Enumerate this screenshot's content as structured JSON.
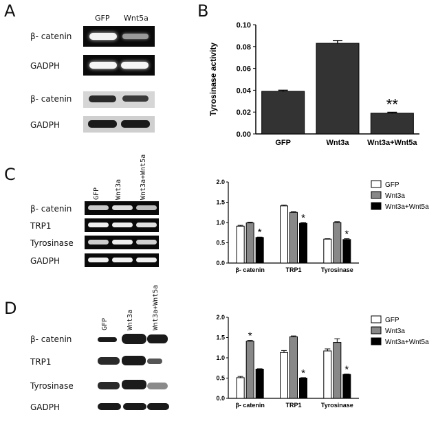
{
  "panels": {
    "A": {
      "letter": "A",
      "col_labels": [
        "GFP",
        "Wnt5a"
      ],
      "row_labels": [
        "β- catenin",
        "GADPH",
        "β- catenin",
        "GADPH"
      ]
    },
    "B": {
      "letter": "B"
    },
    "C": {
      "letter": "C",
      "col_labels": [
        "GFP",
        "Wnt3a",
        "Wnt3a+Wnt5a"
      ],
      "row_labels": [
        "β- catenin",
        "TRP1",
        "Tyrosinase",
        "GADPH"
      ]
    },
    "D": {
      "letter": "D",
      "col_labels": [
        "GFP",
        "Wnt3a",
        "Wnt3a+Wnt5a"
      ],
      "row_labels": [
        "β- catenin",
        "TRP1",
        "Tyrosinase",
        "GADPH"
      ]
    }
  },
  "chart_data": [
    {
      "id": "B",
      "type": "bar",
      "ylabel": "Tyrosinase activity",
      "categories": [
        "GFP",
        "Wnt3a",
        "Wnt3a+Wnt5a"
      ],
      "values": [
        0.039,
        0.083,
        0.019
      ],
      "errors": [
        0.001,
        0.0025,
        0.0008
      ],
      "annotations": [
        "",
        "",
        "**"
      ],
      "ylim": [
        0,
        0.1
      ],
      "yticks": [
        "0.00",
        "0.02",
        "0.04",
        "0.06",
        "0.08",
        "0.10"
      ],
      "bar_color": "#333333"
    },
    {
      "id": "C",
      "type": "bar",
      "categories": [
        "β- catenin",
        "TRP1",
        "Tyrosinase"
      ],
      "series": [
        {
          "name": "GFP",
          "values": [
            0.91,
            1.41,
            0.59
          ],
          "errors": [
            0.02,
            0.02,
            0.01
          ],
          "color": "#ffffff"
        },
        {
          "name": "Wnt3a",
          "values": [
            0.99,
            1.25,
            1.0
          ],
          "errors": [
            0.02,
            0.02,
            0.02
          ],
          "color": "#888888"
        },
        {
          "name": "Wnt3a+Wnt5a",
          "values": [
            0.63,
            0.98,
            0.58
          ],
          "errors": [
            0.01,
            0.02,
            0.02
          ],
          "color": "#000000"
        }
      ],
      "annotations": [
        [
          "",
          "",
          "*"
        ],
        [
          "",
          "",
          "*"
        ],
        [
          "",
          "",
          "*"
        ]
      ],
      "ylim": [
        0,
        2.0
      ],
      "yticks": [
        "0.0",
        "0.5",
        "1.0",
        "1.5",
        "2.0"
      ]
    },
    {
      "id": "D",
      "type": "bar",
      "categories": [
        "β- catenin",
        "TRP1",
        "Tyrosinase"
      ],
      "series": [
        {
          "name": "GFP",
          "values": [
            0.51,
            1.13,
            1.17
          ],
          "errors": [
            0.03,
            0.05,
            0.05
          ],
          "color": "#ffffff"
        },
        {
          "name": "Wnt3a",
          "values": [
            1.41,
            1.52,
            1.38
          ],
          "errors": [
            0.02,
            0.02,
            0.09
          ],
          "color": "#888888"
        },
        {
          "name": "Wnt3a+Wnt5a",
          "values": [
            0.72,
            0.5,
            0.59
          ],
          "errors": [
            0.01,
            0.01,
            0.01
          ],
          "color": "#000000"
        }
      ],
      "annotations": [
        [
          "",
          "*",
          ""
        ],
        [
          "",
          "",
          "*"
        ],
        [
          "",
          "",
          "*"
        ]
      ],
      "ylim": [
        0,
        2.0
      ],
      "yticks": [
        "0.0",
        "0.5",
        "1.0",
        "1.5",
        "2.0"
      ]
    }
  ]
}
